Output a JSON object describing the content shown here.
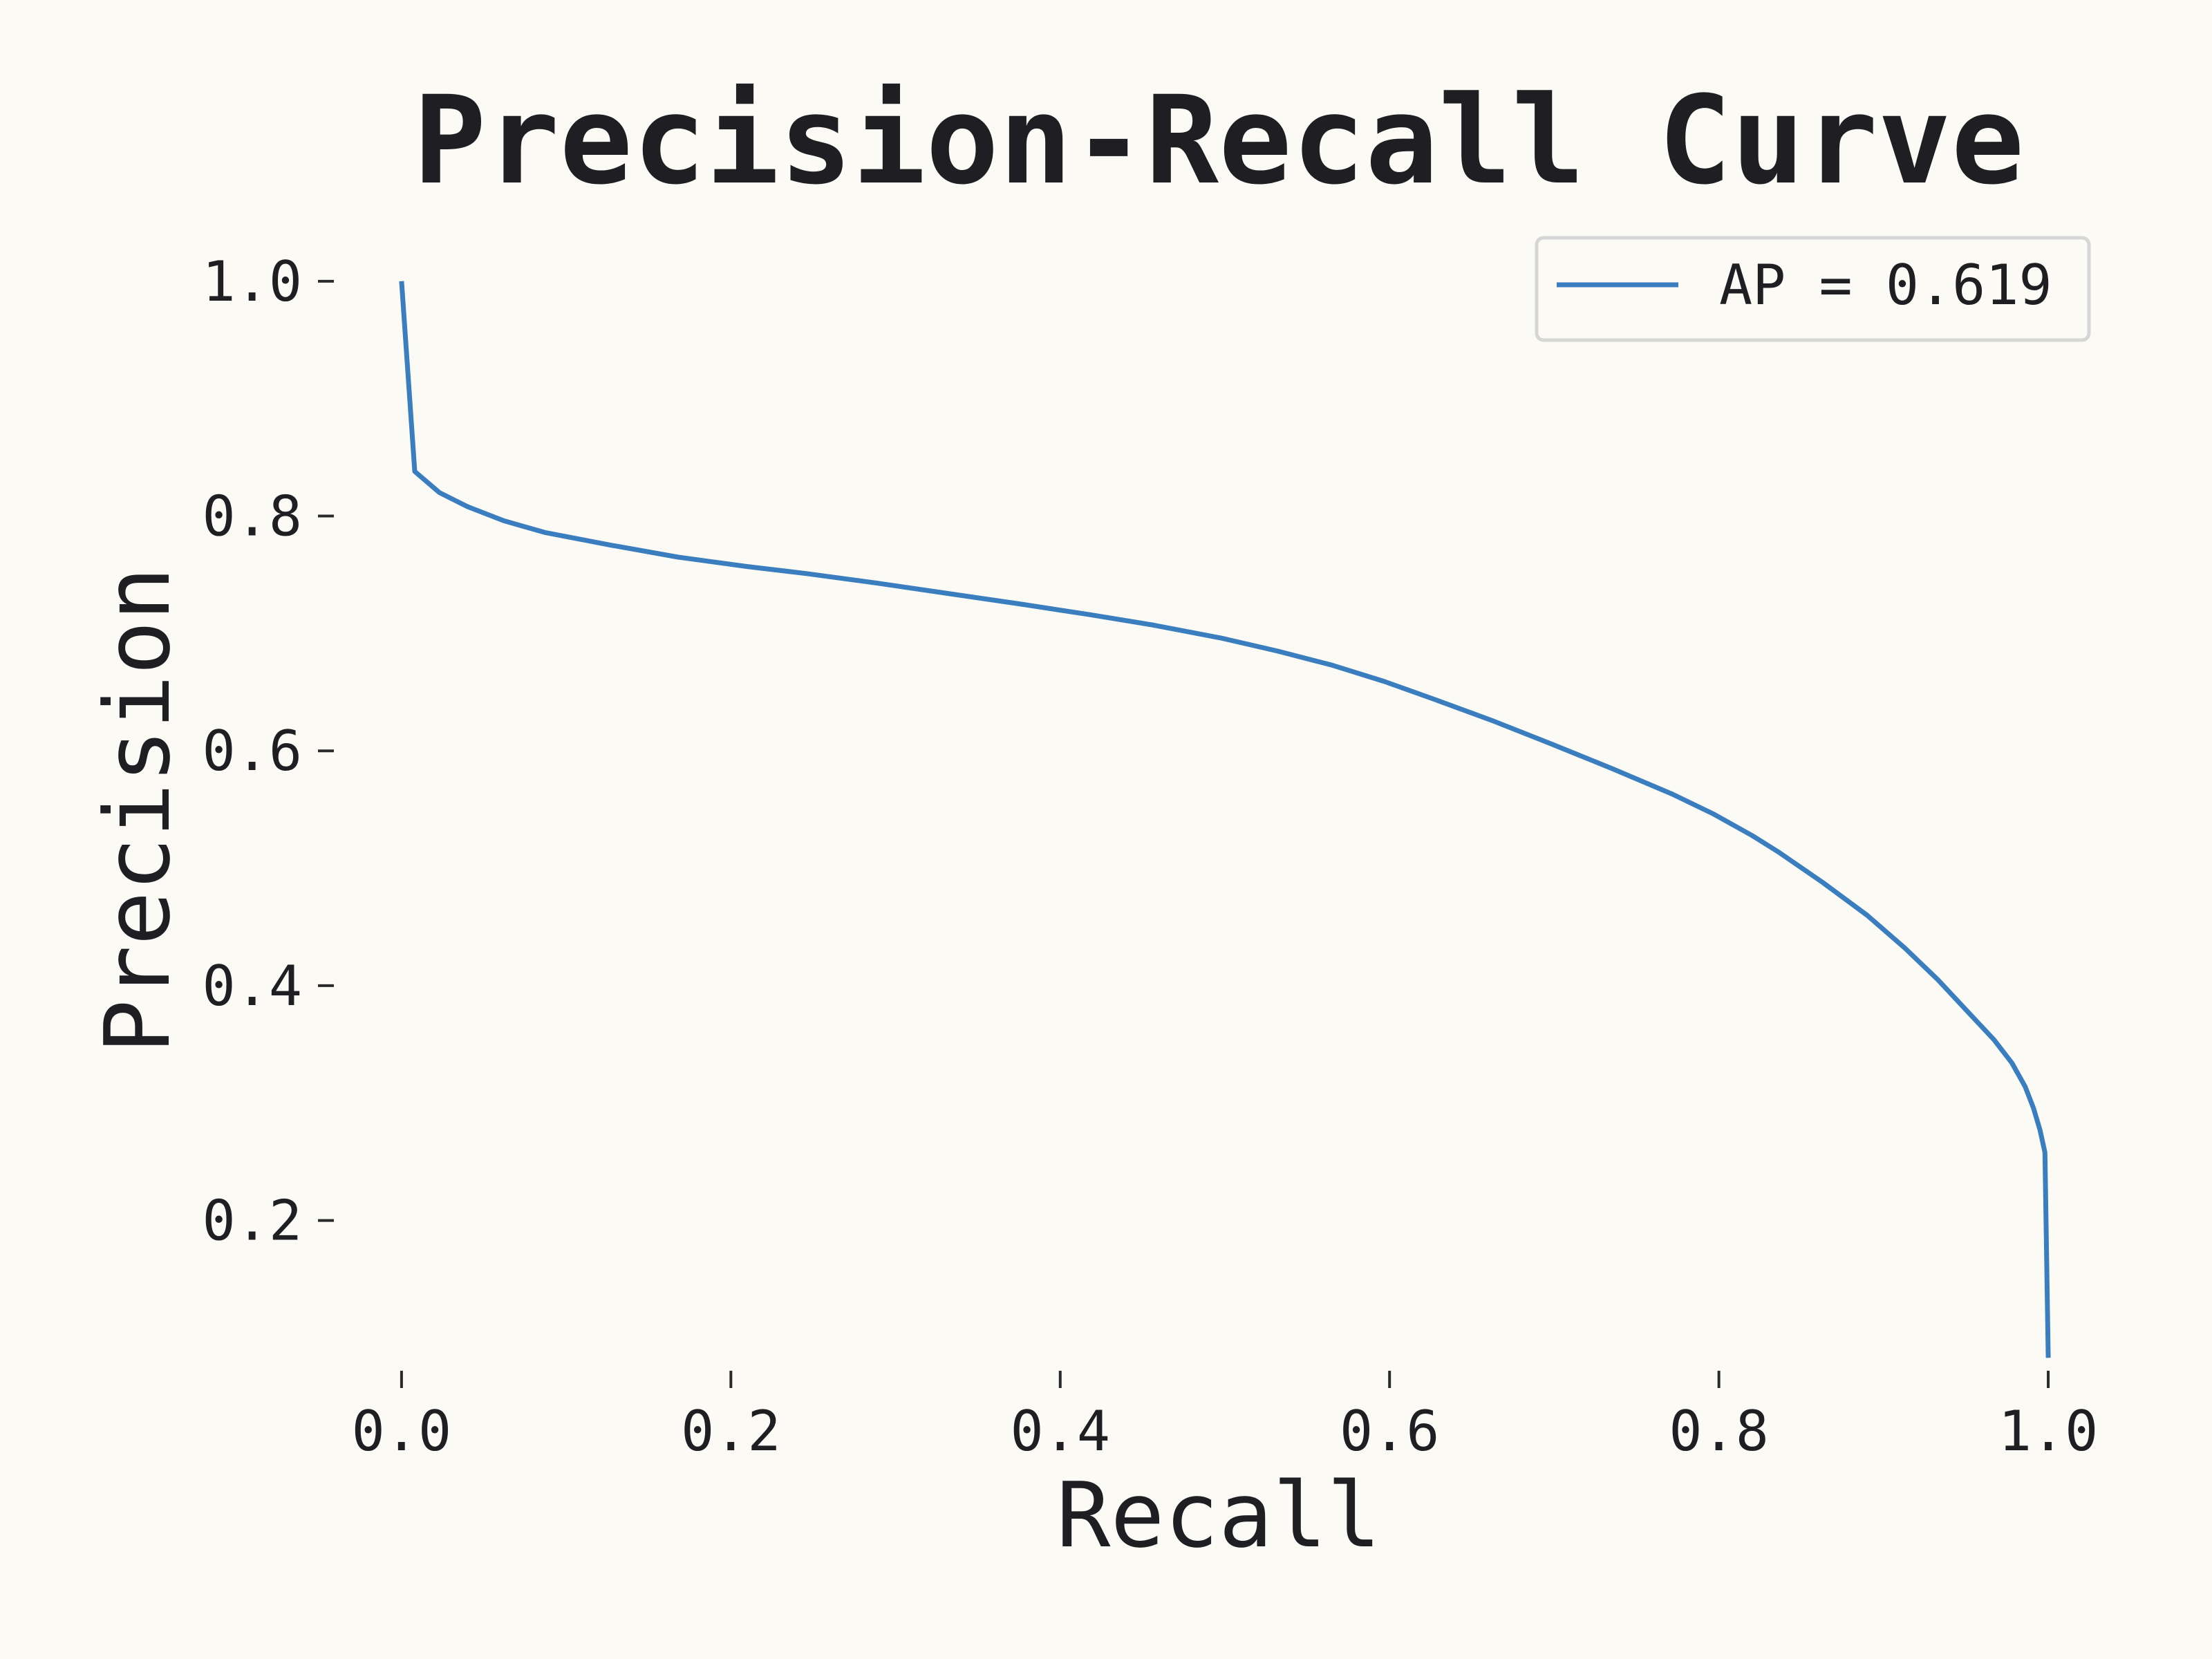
{
  "chart_data": {
    "type": "line",
    "title": "Precision-Recall Curve",
    "xlabel": "Recall",
    "ylabel": "Precision",
    "xlim": [
      -0.039,
      1.026
    ],
    "ylim": [
      0.062,
      1.037
    ],
    "xticks": [
      0.0,
      0.2,
      0.4,
      0.6,
      0.8,
      1.0
    ],
    "xtick_labels": [
      "0.0",
      "0.2",
      "0.4",
      "0.6",
      "0.8",
      "1.0"
    ],
    "yticks": [
      0.2,
      0.4,
      0.6,
      0.8,
      1.0
    ],
    "ytick_labels": [
      "0.2",
      "0.4",
      "0.6",
      "0.8",
      "1.0"
    ],
    "grid": false,
    "legend_position": "top-right",
    "series": [
      {
        "name": "AP = 0.619",
        "color": "#3a7ebf",
        "x": [
          0.0,
          0.008,
          0.023,
          0.04,
          0.062,
          0.087,
          0.128,
          0.168,
          0.21,
          0.246,
          0.288,
          0.332,
          0.376,
          0.418,
          0.457,
          0.498,
          0.532,
          0.565,
          0.597,
          0.627,
          0.662,
          0.698,
          0.735,
          0.772,
          0.797,
          0.82,
          0.836,
          0.863,
          0.89,
          0.913,
          0.933,
          0.953,
          0.967,
          0.978,
          0.986,
          0.991,
          0.995,
          0.998,
          1.0
        ],
        "y": [
          1.0,
          0.838,
          0.82,
          0.808,
          0.796,
          0.786,
          0.775,
          0.765,
          0.757,
          0.751,
          0.743,
          0.734,
          0.725,
          0.716,
          0.707,
          0.696,
          0.685,
          0.673,
          0.659,
          0.644,
          0.626,
          0.606,
          0.585,
          0.563,
          0.546,
          0.528,
          0.514,
          0.488,
          0.46,
          0.432,
          0.405,
          0.375,
          0.354,
          0.334,
          0.314,
          0.296,
          0.277,
          0.258,
          0.083
        ]
      }
    ]
  }
}
